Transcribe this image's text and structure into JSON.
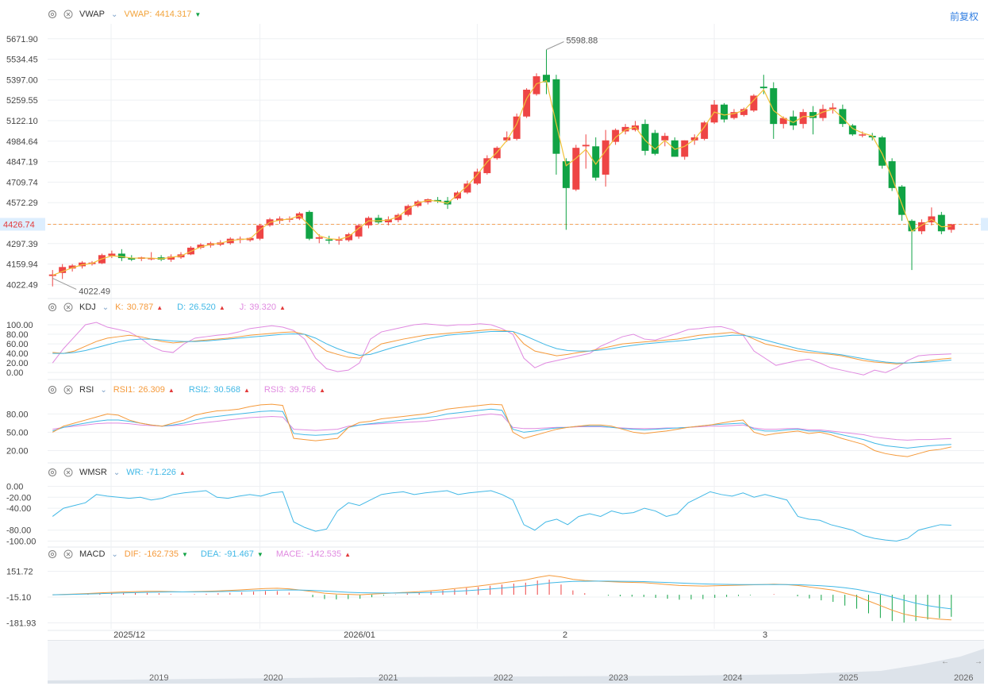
{
  "main": {
    "indicator": "VWAP",
    "label": "VWAP:",
    "value": "4414.317",
    "value_color": "#f2a33a",
    "restoration_label": "前复权",
    "y_ticks": [
      "5671.90",
      "5534.45",
      "5397.00",
      "5259.55",
      "5122.10",
      "4984.64",
      "4847.19",
      "4709.74",
      "4572.29",
      "4426.74",
      "4297.39",
      "4159.94",
      "4022.49"
    ],
    "y_min": 3950,
    "y_max": 5740,
    "high_label": "5598.88",
    "low_label": "4022.49",
    "current_price": "4426.74",
    "up_color": "#ee4545",
    "down_color": "#11a345"
  },
  "kdj": {
    "name": "KDJ",
    "k_label": "K:",
    "k_value": "30.787",
    "k_color": "#f59a3b",
    "d_label": "D:",
    "d_value": "26.520",
    "d_color": "#41b8e6",
    "j_label": "J:",
    "j_value": "39.320",
    "j_color": "#e08ae0",
    "y_ticks": [
      "100.00",
      "80.00",
      "60.00",
      "40.00",
      "20.00",
      "0.00"
    ]
  },
  "rsi": {
    "name": "RSI",
    "r1_label": "RSI1:",
    "r1_value": "26.309",
    "r1_color": "#f59a3b",
    "r2_label": "RSI2:",
    "r2_value": "30.568",
    "r2_color": "#41b8e6",
    "r3_label": "RSI3:",
    "r3_value": "39.756",
    "r3_color": "#e08ae0",
    "y_ticks": [
      "80.00",
      "50.00",
      "20.00"
    ]
  },
  "wmsr": {
    "name": "WMSR",
    "wr_label": "WR:",
    "wr_value": "-71.226",
    "wr_color": "#41b8e6",
    "y_ticks": [
      "0.00",
      "-20.00",
      "-40.00",
      "-80.00",
      "-100.00"
    ]
  },
  "macd": {
    "name": "MACD",
    "dif_label": "DIF:",
    "dif_value": "-162.735",
    "dif_color": "#f59a3b",
    "dea_label": "DEA:",
    "dea_value": "-91.467",
    "dea_color": "#41b8e6",
    "mace_label": "MACE:",
    "mace_value": "-142.535",
    "mace_color": "#e08ae0",
    "y_ticks": [
      "151.72",
      "-15.10",
      "-181.93"
    ]
  },
  "x_axis_labels": [
    "2025/12",
    "2026/01",
    "2",
    "3"
  ],
  "navigator_years": [
    "2019",
    "2020",
    "2021",
    "2022",
    "2023",
    "2024",
    "2025",
    "2026"
  ],
  "chart_data": {
    "type": "candlestick",
    "x_labels": [
      "2025/12",
      "2026/01",
      "2",
      "3"
    ],
    "candles": [
      {
        "o": 4080,
        "h": 4120,
        "l": 4010,
        "c": 4090
      },
      {
        "o": 4100,
        "h": 4160,
        "l": 4060,
        "c": 4140
      },
      {
        "o": 4130,
        "h": 4160,
        "l": 4110,
        "c": 4150
      },
      {
        "o": 4145,
        "h": 4180,
        "l": 4130,
        "c": 4170
      },
      {
        "o": 4160,
        "h": 4180,
        "l": 4150,
        "c": 4170
      },
      {
        "o": 4165,
        "h": 4230,
        "l": 4160,
        "c": 4220
      },
      {
        "o": 4215,
        "h": 4250,
        "l": 4200,
        "c": 4230
      },
      {
        "o": 4230,
        "h": 4260,
        "l": 4180,
        "c": 4200
      },
      {
        "o": 4200,
        "h": 4220,
        "l": 4180,
        "c": 4190
      },
      {
        "o": 4195,
        "h": 4210,
        "l": 4180,
        "c": 4205
      },
      {
        "o": 4200,
        "h": 4240,
        "l": 4185,
        "c": 4200
      },
      {
        "o": 4205,
        "h": 4220,
        "l": 4180,
        "c": 4190
      },
      {
        "o": 4190,
        "h": 4225,
        "l": 4175,
        "c": 4210
      },
      {
        "o": 4205,
        "h": 4240,
        "l": 4195,
        "c": 4225
      },
      {
        "o": 4225,
        "h": 4280,
        "l": 4220,
        "c": 4270
      },
      {
        "o": 4270,
        "h": 4300,
        "l": 4260,
        "c": 4290
      },
      {
        "o": 4285,
        "h": 4310,
        "l": 4270,
        "c": 4300
      },
      {
        "o": 4290,
        "h": 4320,
        "l": 4280,
        "c": 4305
      },
      {
        "o": 4300,
        "h": 4340,
        "l": 4290,
        "c": 4330
      },
      {
        "o": 4325,
        "h": 4345,
        "l": 4300,
        "c": 4330
      },
      {
        "o": 4320,
        "h": 4340,
        "l": 4310,
        "c": 4335
      },
      {
        "o": 4330,
        "h": 4430,
        "l": 4320,
        "c": 4420
      },
      {
        "o": 4420,
        "h": 4470,
        "l": 4410,
        "c": 4460
      },
      {
        "o": 4450,
        "h": 4480,
        "l": 4430,
        "c": 4465
      },
      {
        "o": 4460,
        "h": 4480,
        "l": 4440,
        "c": 4465
      },
      {
        "o": 4465,
        "h": 4510,
        "l": 4455,
        "c": 4500
      },
      {
        "o": 4510,
        "h": 4520,
        "l": 4320,
        "c": 4330
      },
      {
        "o": 4330,
        "h": 4360,
        "l": 4300,
        "c": 4340
      },
      {
        "o": 4325,
        "h": 4350,
        "l": 4295,
        "c": 4320
      },
      {
        "o": 4320,
        "h": 4345,
        "l": 4290,
        "c": 4325
      },
      {
        "o": 4320,
        "h": 4370,
        "l": 4310,
        "c": 4360
      },
      {
        "o": 4345,
        "h": 4430,
        "l": 4330,
        "c": 4420
      },
      {
        "o": 4420,
        "h": 4480,
        "l": 4400,
        "c": 4470
      },
      {
        "o": 4470,
        "h": 4490,
        "l": 4430,
        "c": 4440
      },
      {
        "o": 4440,
        "h": 4480,
        "l": 4420,
        "c": 4460
      },
      {
        "o": 4455,
        "h": 4500,
        "l": 4440,
        "c": 4490
      },
      {
        "o": 4490,
        "h": 4560,
        "l": 4480,
        "c": 4550
      },
      {
        "o": 4550,
        "h": 4590,
        "l": 4540,
        "c": 4580
      },
      {
        "o": 4575,
        "h": 4600,
        "l": 4560,
        "c": 4595
      },
      {
        "o": 4590,
        "h": 4610,
        "l": 4570,
        "c": 4580
      },
      {
        "o": 4585,
        "h": 4610,
        "l": 4530,
        "c": 4560
      },
      {
        "o": 4600,
        "h": 4650,
        "l": 4590,
        "c": 4640
      },
      {
        "o": 4640,
        "h": 4720,
        "l": 4630,
        "c": 4700
      },
      {
        "o": 4700,
        "h": 4800,
        "l": 4690,
        "c": 4780
      },
      {
        "o": 4770,
        "h": 4890,
        "l": 4760,
        "c": 4870
      },
      {
        "o": 4870,
        "h": 4950,
        "l": 4860,
        "c": 4940
      },
      {
        "o": 4990,
        "h": 5050,
        "l": 4980,
        "c": 5010
      },
      {
        "o": 5000,
        "h": 5170,
        "l": 4990,
        "c": 5150
      },
      {
        "o": 5150,
        "h": 5340,
        "l": 5140,
        "c": 5330
      },
      {
        "o": 5300,
        "h": 5440,
        "l": 5290,
        "c": 5420
      },
      {
        "o": 5430,
        "h": 5598.88,
        "l": 5300,
        "c": 5380
      },
      {
        "o": 5400,
        "h": 5430,
        "l": 4760,
        "c": 4900
      },
      {
        "o": 4850,
        "h": 4870,
        "l": 4390,
        "c": 4670
      },
      {
        "o": 4660,
        "h": 4960,
        "l": 4650,
        "c": 4940
      },
      {
        "o": 4950,
        "h": 5030,
        "l": 4800,
        "c": 4960
      },
      {
        "o": 4950,
        "h": 5010,
        "l": 4720,
        "c": 4740
      },
      {
        "o": 4760,
        "h": 5060,
        "l": 4680,
        "c": 4990
      },
      {
        "o": 4980,
        "h": 5070,
        "l": 4960,
        "c": 5060
      },
      {
        "o": 5050,
        "h": 5100,
        "l": 5030,
        "c": 5080
      },
      {
        "o": 5060,
        "h": 5120,
        "l": 5050,
        "c": 5090
      },
      {
        "o": 5100,
        "h": 5130,
        "l": 4890,
        "c": 4920
      },
      {
        "o": 5040,
        "h": 5060,
        "l": 4890,
        "c": 4900
      },
      {
        "o": 4990,
        "h": 5040,
        "l": 4950,
        "c": 5020
      },
      {
        "o": 4990,
        "h": 5010,
        "l": 4880,
        "c": 4880
      },
      {
        "o": 4880,
        "h": 4990,
        "l": 4860,
        "c": 4990
      },
      {
        "o": 4990,
        "h": 5030,
        "l": 4960,
        "c": 5010
      },
      {
        "o": 5000,
        "h": 5120,
        "l": 4990,
        "c": 5110
      },
      {
        "o": 5110,
        "h": 5260,
        "l": 5100,
        "c": 5230
      },
      {
        "o": 5230,
        "h": 5240,
        "l": 5110,
        "c": 5130
      },
      {
        "o": 5140,
        "h": 5200,
        "l": 5130,
        "c": 5180
      },
      {
        "o": 5160,
        "h": 5210,
        "l": 5150,
        "c": 5200
      },
      {
        "o": 5190,
        "h": 5300,
        "l": 5180,
        "c": 5290
      },
      {
        "o": 5350,
        "h": 5430,
        "l": 5300,
        "c": 5340
      },
      {
        "o": 5340,
        "h": 5380,
        "l": 5000,
        "c": 5100
      },
      {
        "o": 5100,
        "h": 5150,
        "l": 5070,
        "c": 5140
      },
      {
        "o": 5150,
        "h": 5190,
        "l": 5060,
        "c": 5090
      },
      {
        "o": 5100,
        "h": 5200,
        "l": 5070,
        "c": 5180
      },
      {
        "o": 5180,
        "h": 5220,
        "l": 5030,
        "c": 5140
      },
      {
        "o": 5140,
        "h": 5230,
        "l": 5120,
        "c": 5200
      },
      {
        "o": 5200,
        "h": 5240,
        "l": 5170,
        "c": 5210
      },
      {
        "o": 5200,
        "h": 5230,
        "l": 5080,
        "c": 5100
      },
      {
        "o": 5090,
        "h": 5100,
        "l": 5020,
        "c": 5030
      },
      {
        "o": 5030,
        "h": 5050,
        "l": 5010,
        "c": 5030
      },
      {
        "o": 5020,
        "h": 5040,
        "l": 4990,
        "c": 5010
      },
      {
        "o": 5010,
        "h": 5020,
        "l": 4800,
        "c": 4820
      },
      {
        "o": 4850,
        "h": 4870,
        "l": 4650,
        "c": 4670
      },
      {
        "o": 4680,
        "h": 4690,
        "l": 4450,
        "c": 4490
      },
      {
        "o": 4450,
        "h": 4460,
        "l": 4120,
        "c": 4380
      },
      {
        "o": 4380,
        "h": 4460,
        "l": 4360,
        "c": 4440
      },
      {
        "o": 4440,
        "h": 4540,
        "l": 4420,
        "c": 4480
      },
      {
        "o": 4490,
        "h": 4510,
        "l": 4360,
        "c": 4380
      },
      {
        "o": 4390,
        "h": 4430,
        "l": 4370,
        "c": 4426.74
      }
    ],
    "vwap": [
      4085,
      4110,
      4135,
      4155,
      4165,
      4195,
      4215,
      4210,
      4200,
      4200,
      4200,
      4195,
      4205,
      4215,
      4245,
      4275,
      4292,
      4300,
      4318,
      4325,
      4330,
      4390,
      4440,
      4455,
      4462,
      4485,
      4420,
      4350,
      4330,
      4325,
      4345,
      4400,
      4450,
      4450,
      4455,
      4478,
      4530,
      4570,
      4588,
      4582,
      4568,
      4625,
      4685,
      4760,
      4845,
      4910,
      4990,
      5100,
      5270,
      5370,
      5390,
      5100,
      4820,
      4870,
      4930,
      4830,
      4920,
      5010,
      5060,
      5080,
      4990,
      4930,
      4990,
      4930,
      4950,
      4995,
      5080,
      5180,
      5160,
      5170,
      5190,
      5260,
      5330,
      5190,
      5140,
      5110,
      5150,
      5150,
      5180,
      5200,
      5140,
      5070,
      5040,
      5020,
      4900,
      4740,
      4560,
      4380,
      4420,
      4460,
      4410,
      4414
    ],
    "kdj_k": [
      42,
      40,
      45,
      55,
      65,
      72,
      75,
      78,
      75,
      70,
      65,
      62,
      64,
      66,
      68,
      70,
      72,
      75,
      78,
      80,
      82,
      84,
      85,
      80,
      62,
      45,
      38,
      32,
      30,
      45,
      60,
      65,
      70,
      74,
      78,
      80,
      82,
      84,
      86,
      88,
      90,
      88,
      86,
      60,
      45,
      40,
      35,
      38,
      42,
      45,
      50,
      55,
      60,
      62,
      64,
      66,
      68,
      70,
      74,
      78,
      80,
      82,
      84,
      80,
      70,
      60,
      55,
      50,
      45,
      42,
      40,
      38,
      35,
      30,
      25,
      22,
      20,
      18,
      20,
      22,
      25,
      28,
      30
    ],
    "kdj_d": [
      40,
      40,
      42,
      46,
      52,
      58,
      64,
      68,
      70,
      70,
      68,
      66,
      65,
      65,
      66,
      68,
      70,
      72,
      74,
      76,
      78,
      80,
      81,
      80,
      72,
      60,
      50,
      42,
      36,
      38,
      45,
      52,
      58,
      64,
      70,
      74,
      78,
      80,
      82,
      84,
      86,
      86,
      86,
      78,
      68,
      58,
      50,
      46,
      45,
      45,
      47,
      50,
      54,
      57,
      60,
      62,
      64,
      66,
      68,
      71,
      74,
      76,
      78,
      78,
      74,
      68,
      62,
      56,
      50,
      46,
      43,
      40,
      37,
      33,
      29,
      25,
      22,
      20,
      20,
      21,
      22,
      24,
      26
    ],
    "kdj_j": [
      20,
      50,
      75,
      100,
      105,
      95,
      90,
      85,
      72,
      55,
      45,
      42,
      60,
      72,
      75,
      78,
      80,
      85,
      92,
      95,
      98,
      95,
      88,
      70,
      30,
      8,
      2,
      5,
      20,
      70,
      85,
      90,
      95,
      100,
      102,
      100,
      98,
      100,
      100,
      102,
      100,
      92,
      80,
      30,
      10,
      20,
      25,
      30,
      35,
      40,
      55,
      65,
      75,
      80,
      70,
      68,
      75,
      82,
      90,
      92,
      95,
      96,
      90,
      78,
      45,
      30,
      15,
      20,
      25,
      28,
      20,
      10,
      5,
      0,
      -5,
      5,
      0,
      10,
      25,
      35,
      37,
      38,
      39
    ],
    "rsi1": [
      50,
      60,
      65,
      70,
      75,
      80,
      78,
      70,
      65,
      62,
      60,
      65,
      70,
      78,
      82,
      85,
      86,
      88,
      92,
      95,
      96,
      94,
      40,
      38,
      36,
      38,
      40,
      58,
      66,
      68,
      72,
      74,
      76,
      78,
      80,
      84,
      88,
      90,
      92,
      94,
      96,
      95,
      50,
      40,
      45,
      50,
      55,
      58,
      60,
      62,
      62,
      60,
      55,
      50,
      48,
      50,
      52,
      55,
      58,
      60,
      62,
      65,
      68,
      70,
      50,
      45,
      48,
      50,
      52,
      48,
      50,
      46,
      40,
      35,
      30,
      20,
      15,
      12,
      10,
      15,
      20,
      22,
      26
    ],
    "rsi2": [
      52,
      58,
      62,
      65,
      68,
      70,
      70,
      68,
      65,
      62,
      60,
      62,
      65,
      70,
      74,
      76,
      78,
      80,
      82,
      84,
      85,
      84,
      48,
      46,
      45,
      46,
      48,
      58,
      62,
      64,
      66,
      68,
      70,
      72,
      74,
      76,
      80,
      82,
      84,
      86,
      88,
      86,
      55,
      50,
      52,
      55,
      57,
      58,
      60,
      60,
      60,
      58,
      56,
      55,
      54,
      55,
      56,
      57,
      58,
      60,
      62,
      63,
      64,
      65,
      55,
      52,
      52,
      54,
      55,
      52,
      52,
      50,
      46,
      42,
      38,
      32,
      28,
      26,
      24,
      26,
      28,
      29,
      30
    ],
    "rsi3": [
      55,
      58,
      60,
      62,
      64,
      65,
      65,
      64,
      62,
      61,
      60,
      61,
      62,
      64,
      66,
      68,
      70,
      72,
      74,
      75,
      76,
      75,
      55,
      54,
      53,
      54,
      55,
      60,
      62,
      63,
      64,
      65,
      66,
      67,
      68,
      70,
      72,
      74,
      76,
      78,
      80,
      78,
      58,
      56,
      56,
      57,
      58,
      58,
      59,
      59,
      59,
      58,
      57,
      56,
      56,
      56,
      57,
      57,
      58,
      59,
      60,
      60,
      61,
      62,
      57,
      55,
      55,
      56,
      56,
      54,
      54,
      52,
      50,
      48,
      46,
      42,
      40,
      38,
      37,
      38,
      38,
      39,
      39.7
    ],
    "wr": [
      -55,
      -40,
      -35,
      -30,
      -15,
      -18,
      -20,
      -22,
      -20,
      -25,
      -22,
      -15,
      -12,
      -10,
      -8,
      -20,
      -22,
      -18,
      -15,
      -18,
      -12,
      -10,
      -65,
      -75,
      -82,
      -78,
      -45,
      -30,
      -35,
      -25,
      -15,
      -12,
      -10,
      -15,
      -12,
      -10,
      -8,
      -15,
      -12,
      -10,
      -8,
      -15,
      -25,
      -70,
      -80,
      -65,
      -60,
      -70,
      -55,
      -50,
      -55,
      -45,
      -50,
      -48,
      -40,
      -45,
      -55,
      -50,
      -30,
      -20,
      -10,
      -15,
      -18,
      -12,
      -20,
      -15,
      -20,
      -25,
      -55,
      -60,
      -62,
      -70,
      -75,
      -80,
      -90,
      -95,
      -98,
      -100,
      -95,
      -80,
      -75,
      -70,
      -71
    ],
    "dif": [
      0,
      2,
      5,
      8,
      12,
      15,
      18,
      20,
      22,
      22,
      20,
      18,
      20,
      22,
      25,
      28,
      32,
      36,
      40,
      42,
      38,
      30,
      20,
      10,
      5,
      2,
      0,
      4,
      8,
      12,
      16,
      20,
      26,
      32,
      40,
      48,
      56,
      66,
      76,
      86,
      96,
      112,
      125,
      115,
      100,
      92,
      88,
      85,
      82,
      80,
      78,
      72,
      66,
      60,
      58,
      56,
      58,
      60,
      62,
      64,
      66,
      68,
      66,
      60,
      50,
      40,
      30,
      10,
      -10,
      -40,
      -70,
      -100,
      -125,
      -140,
      -150,
      -158,
      -162.7
    ],
    "dea": [
      0,
      1,
      3,
      5,
      7,
      9,
      12,
      14,
      16,
      17,
      18,
      18,
      18,
      19,
      20,
      22,
      24,
      26,
      28,
      30,
      31,
      30,
      28,
      24,
      20,
      16,
      13,
      12,
      11,
      11,
      12,
      13,
      15,
      18,
      22,
      26,
      31,
      37,
      43,
      50,
      57,
      66,
      76,
      82,
      86,
      87,
      88,
      88,
      87,
      86,
      85,
      82,
      79,
      76,
      73,
      70,
      68,
      67,
      66,
      66,
      66,
      66,
      66,
      65,
      62,
      58,
      53,
      45,
      35,
      20,
      5,
      -15,
      -35,
      -55,
      -70,
      -82,
      -91.5
    ]
  }
}
